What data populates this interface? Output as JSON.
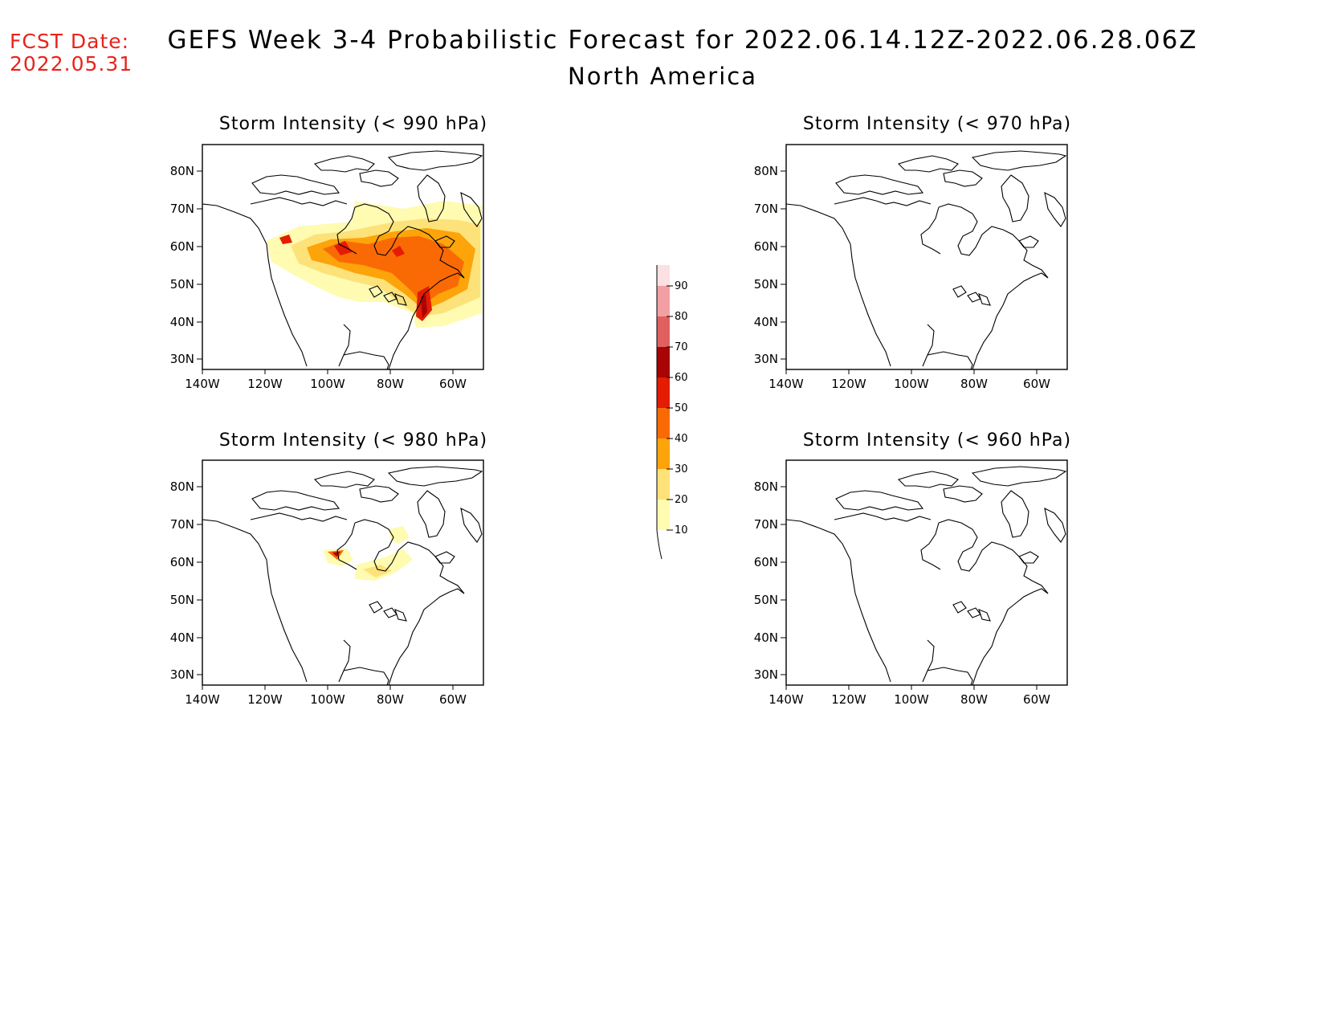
{
  "header": {
    "fcst_label": "FCST Date:",
    "fcst_date": "2022.05.31",
    "title": "GEFS Week 3-4 Probabilistic Forecast for 2022.06.14.12Z-2022.06.28.06Z",
    "subtitle": "North America"
  },
  "panels": [
    {
      "id": "p990",
      "title": "Storm Intensity (< 990 hPa)"
    },
    {
      "id": "p970",
      "title": "Storm Intensity (< 970 hPa)"
    },
    {
      "id": "p980",
      "title": "Storm Intensity (< 980 hPa)"
    },
    {
      "id": "p960",
      "title": "Storm Intensity (< 960 hPa)"
    }
  ],
  "axes": {
    "lat_ticks": [
      "80N",
      "70N",
      "60N",
      "50N",
      "40N",
      "30N"
    ],
    "lon_ticks": [
      "140W",
      "120W",
      "100W",
      "80W",
      "60W"
    ]
  },
  "colorbar": {
    "levels": [
      "10",
      "20",
      "30",
      "40",
      "50",
      "60",
      "70",
      "80",
      "90"
    ],
    "colors": [
      "#fffbb0",
      "#fde27a",
      "#fca40a",
      "#fa6a04",
      "#e41c04",
      "#a80404",
      "#e06060",
      "#f2a0a4",
      "#fde0e2"
    ]
  }
}
